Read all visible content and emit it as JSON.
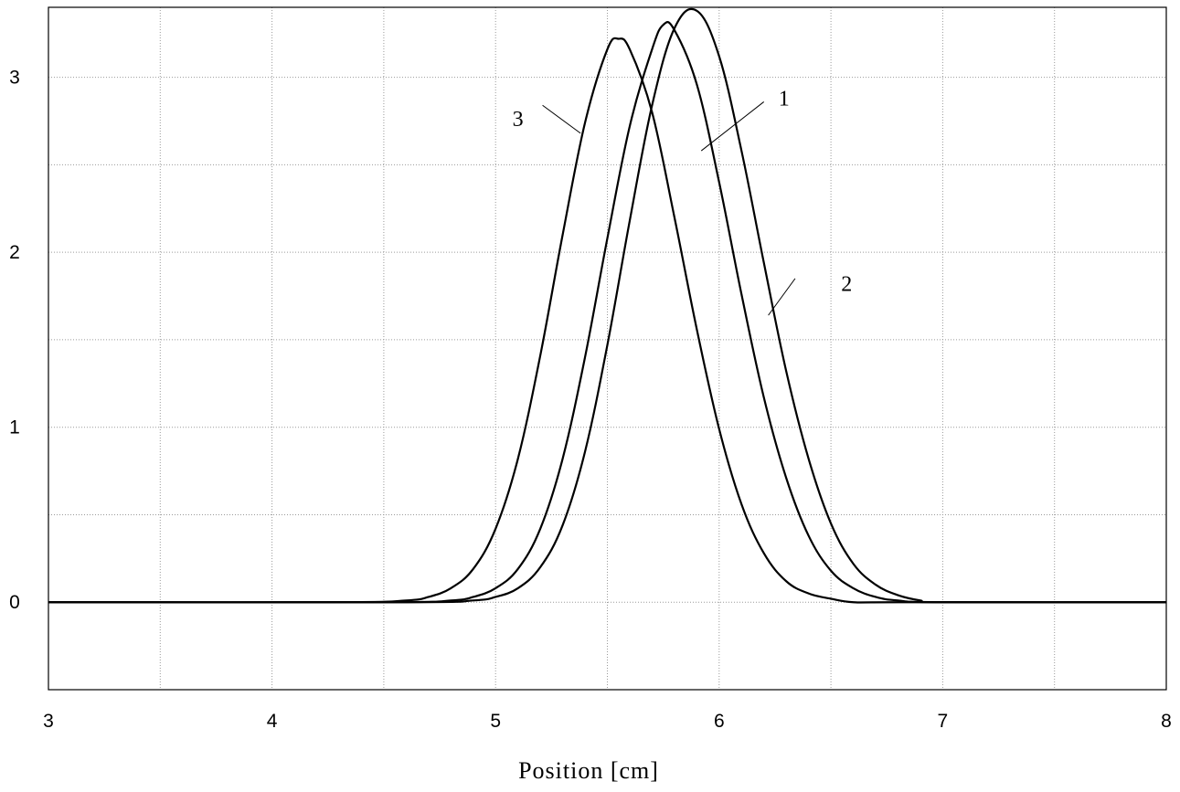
{
  "chart_data": {
    "type": "line",
    "title": "",
    "xlabel": "Position [cm]",
    "ylabel": "",
    "xlim": [
      3,
      8
    ],
    "ylim": [
      -0.5,
      3.4
    ],
    "grid": true,
    "x_ticks": [
      3,
      4,
      5,
      6,
      7,
      8
    ],
    "x_tick_labels": [
      "3",
      "4",
      "5",
      "6",
      "7",
      "8"
    ],
    "x_minor_grid": [
      3.5,
      4.5,
      5.5,
      6.5,
      7.5
    ],
    "y_ticks": [
      0,
      1,
      2,
      3
    ],
    "y_tick_labels": [
      "0",
      "1",
      "2",
      "3"
    ],
    "y_minor_grid": [
      -0.5,
      0.5,
      1.5,
      2.5
    ],
    "series": [
      {
        "label": "1",
        "x": [
          3.0,
          4.5,
          4.8,
          4.9,
          5.0,
          5.1,
          5.2,
          5.3,
          5.4,
          5.5,
          5.6,
          5.7,
          5.75,
          5.8,
          5.9,
          6.0,
          6.1,
          6.2,
          6.3,
          6.4,
          6.5,
          6.6,
          6.7,
          6.8,
          7.0,
          8.0
        ],
        "y": [
          0.0,
          0.0,
          0.01,
          0.03,
          0.08,
          0.19,
          0.42,
          0.82,
          1.4,
          2.08,
          2.72,
          3.16,
          3.3,
          3.27,
          2.96,
          2.4,
          1.76,
          1.17,
          0.71,
          0.38,
          0.18,
          0.08,
          0.03,
          0.01,
          0.0,
          0.0
        ]
      },
      {
        "label": "2",
        "x": [
          3.0,
          4.6,
          4.9,
          5.0,
          5.1,
          5.2,
          5.3,
          5.4,
          5.5,
          5.6,
          5.7,
          5.8,
          5.9,
          6.0,
          6.1,
          6.2,
          6.3,
          6.4,
          6.5,
          6.6,
          6.7,
          6.8,
          6.9,
          7.0,
          8.0
        ],
        "y": [
          0.0,
          0.0,
          0.01,
          0.03,
          0.08,
          0.2,
          0.44,
          0.86,
          1.47,
          2.18,
          2.84,
          3.28,
          3.38,
          3.12,
          2.58,
          1.94,
          1.32,
          0.82,
          0.45,
          0.22,
          0.1,
          0.04,
          0.01,
          0.0,
          0.0
        ]
      },
      {
        "label": "3",
        "x": [
          3.0,
          4.3,
          4.6,
          4.7,
          4.8,
          4.9,
          5.0,
          5.1,
          5.2,
          5.3,
          5.4,
          5.5,
          5.55,
          5.6,
          5.7,
          5.8,
          5.9,
          6.0,
          6.1,
          6.2,
          6.3,
          6.4,
          6.5,
          6.6,
          6.8,
          8.0
        ],
        "y": [
          0.0,
          0.0,
          0.01,
          0.03,
          0.08,
          0.19,
          0.42,
          0.82,
          1.41,
          2.1,
          2.74,
          3.16,
          3.22,
          3.16,
          2.8,
          2.2,
          1.56,
          0.99,
          0.56,
          0.28,
          0.12,
          0.05,
          0.02,
          0.0,
          0.0,
          0.0
        ]
      }
    ],
    "annotations": [
      "1",
      "2",
      "3"
    ]
  }
}
